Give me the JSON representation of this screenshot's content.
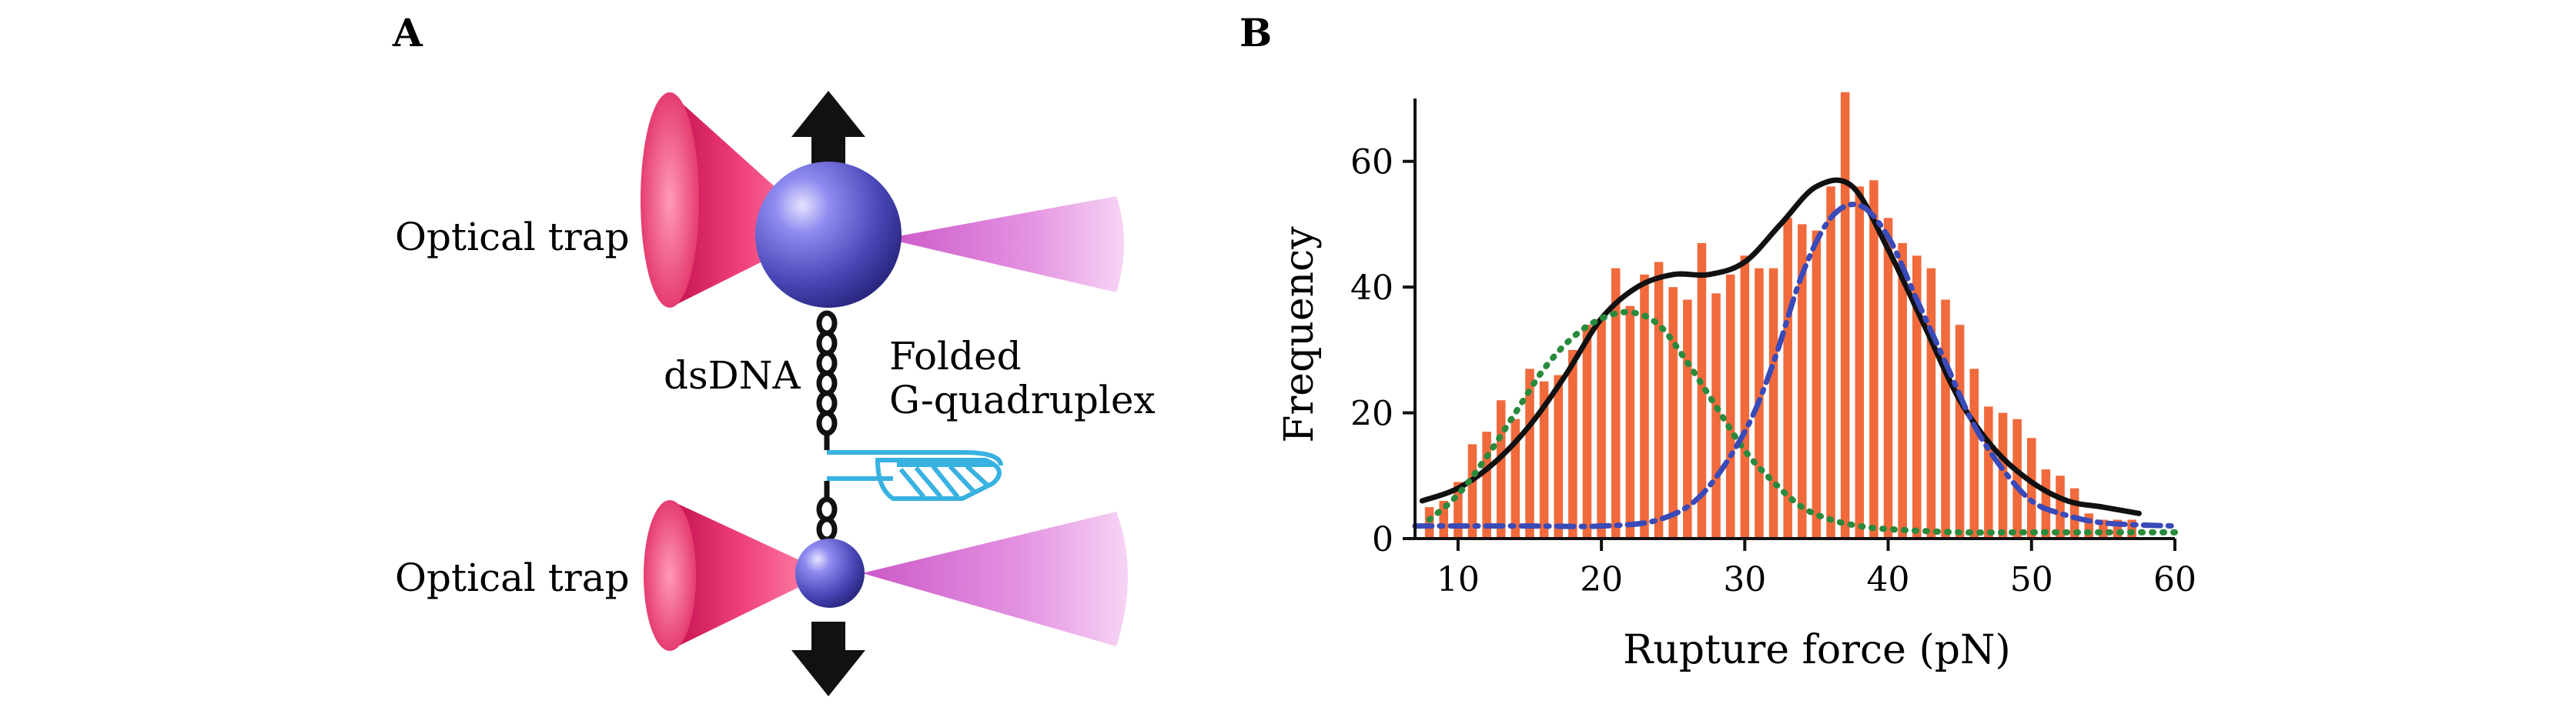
{
  "panel_a": {
    "label": "A",
    "top_trap_label": "Optical trap",
    "bottom_trap_label": "Optical trap",
    "dsdna_label": "dsDNA",
    "gq_label_line1": "Folded",
    "gq_label_line2": "G-quadruplex",
    "colors": {
      "bead": "#4a47b8",
      "trap_cone_left": "#e8306a",
      "trap_cone_right": "#d46ad0",
      "arrow": "#111111",
      "gquadruplex": "#38b2e0"
    }
  },
  "chart_data": {
    "type": "bar",
    "panel_label": "B",
    "title": "",
    "xlabel": "Rupture force (pN)",
    "ylabel": "Frequency",
    "xlim": [
      7,
      60
    ],
    "ylim": [
      0,
      70
    ],
    "xticks": [
      10,
      20,
      30,
      40,
      50,
      60
    ],
    "yticks": [
      0,
      20,
      40,
      60
    ],
    "bar_color": "#f06a3c",
    "bins": {
      "x": [
        8,
        9,
        10,
        11,
        12,
        13,
        14,
        15,
        16,
        17,
        18,
        19,
        20,
        21,
        22,
        23,
        24,
        25,
        26,
        27,
        28,
        29,
        30,
        31,
        32,
        33,
        34,
        35,
        36,
        37,
        38,
        39,
        40,
        41,
        42,
        43,
        44,
        45,
        46,
        47,
        48,
        49,
        50,
        51,
        52,
        53,
        54,
        55,
        56,
        57
      ],
      "values": [
        5,
        6,
        9,
        15,
        17,
        22,
        19,
        27,
        25,
        26,
        30,
        34,
        35,
        43,
        37,
        42,
        44,
        40,
        38,
        47,
        39,
        42,
        45,
        43,
        43,
        51,
        50,
        49,
        56,
        71,
        56,
        57,
        51,
        47,
        45,
        43,
        38,
        34,
        27,
        21,
        20,
        19,
        16,
        11,
        10,
        8,
        4,
        3,
        3,
        3
      ]
    },
    "fits": [
      {
        "style": "solid",
        "color": "#111111",
        "x": [
          7.5,
          10,
          12.5,
          15,
          17.5,
          20,
          22.5,
          25,
          27.5,
          30,
          32.5,
          35,
          37.5,
          40,
          42.5,
          45,
          47.5,
          50,
          52.5,
          55,
          57.5
        ],
        "values": [
          6,
          8,
          12,
          18,
          26,
          35,
          40,
          42,
          42,
          44,
          50,
          56,
          56,
          46,
          34,
          22,
          14,
          9,
          6,
          5,
          4
        ]
      },
      {
        "style": "dotted",
        "color": "#2a8a3c",
        "x": [
          8,
          10,
          12,
          14,
          16,
          18,
          20,
          22,
          24,
          26,
          28,
          30,
          32,
          34,
          36,
          38,
          40,
          45,
          50,
          55,
          60
        ],
        "values": [
          3,
          7,
          13,
          20,
          27,
          32,
          35,
          36,
          34,
          28,
          21,
          14,
          9,
          5,
          3,
          2,
          1.5,
          1,
          1,
          1,
          1
        ]
      },
      {
        "style": "dashed",
        "color": "#3a4ab8",
        "x": [
          7,
          15,
          20,
          24,
          27,
          30,
          32,
          34,
          36,
          38,
          40,
          42,
          44,
          46,
          48,
          50,
          52,
          55,
          60
        ],
        "values": [
          2,
          2,
          2,
          3,
          7,
          17,
          28,
          42,
          51,
          53,
          48,
          38,
          28,
          18,
          11,
          6,
          4,
          2.5,
          2
        ]
      }
    ]
  }
}
